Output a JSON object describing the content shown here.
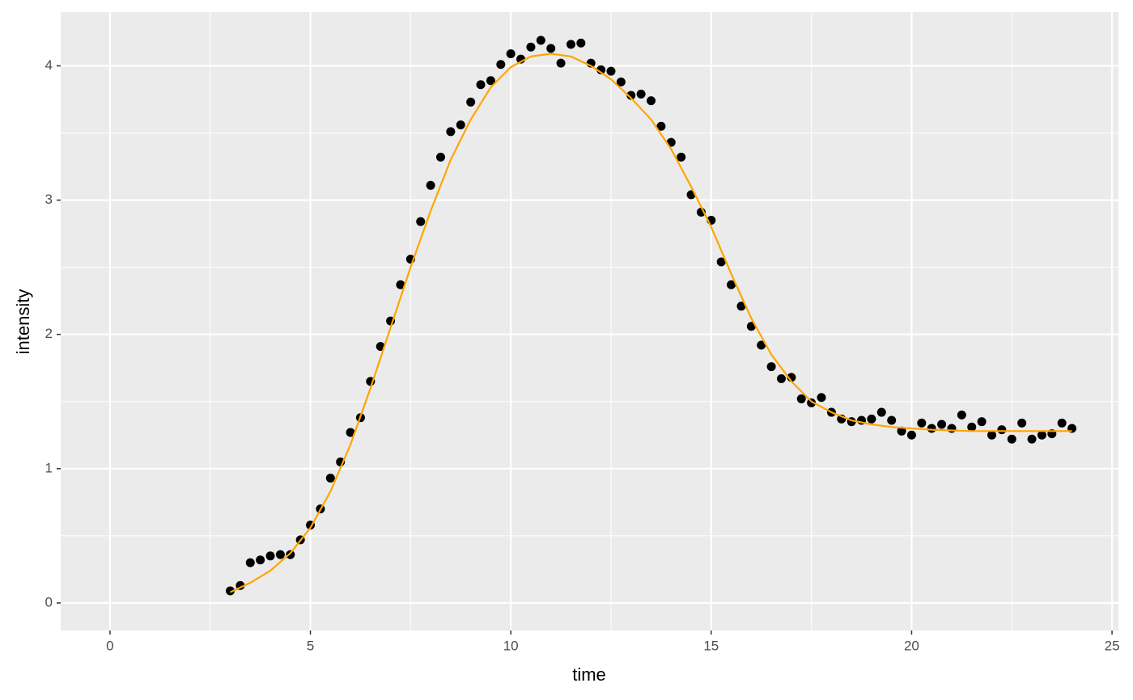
{
  "chart_data": {
    "type": "scatter",
    "x_label": "time",
    "y_label": "intensity",
    "xlim": [
      -1.23,
      25.16
    ],
    "ylim": [
      -0.205,
      4.4
    ],
    "xticks": [
      0,
      5,
      10,
      15,
      20,
      25
    ],
    "yticks": [
      0,
      1,
      2,
      3,
      4
    ],
    "grid": true,
    "points": {
      "color": "#000000",
      "x": [
        3,
        3.25,
        3.5,
        3.75,
        4,
        4.25,
        4.5,
        4.75,
        5,
        5.25,
        5.5,
        5.75,
        6,
        6.25,
        6.5,
        6.75,
        7,
        7.25,
        7.5,
        7.75,
        8,
        8.25,
        8.5,
        8.75,
        9,
        9.25,
        9.5,
        9.75,
        10,
        10.25,
        10.5,
        10.75,
        11,
        11.25,
        11.5,
        11.75,
        12,
        12.25,
        12.5,
        12.75,
        13,
        13.25,
        13.5,
        13.75,
        14,
        14.25,
        14.5,
        14.75,
        15,
        15.25,
        15.5,
        15.75,
        16,
        16.25,
        16.5,
        16.75,
        17,
        17.25,
        17.5,
        17.75,
        18,
        18.25,
        18.5,
        18.75,
        19,
        19.25,
        19.5,
        19.75,
        20,
        20.25,
        20.5,
        20.75,
        21,
        21.25,
        21.5,
        21.75,
        22,
        22.25,
        22.5,
        22.75,
        23,
        23.25,
        23.5,
        23.75,
        24
      ],
      "values": [
        0.09,
        0.13,
        0.3,
        0.32,
        0.35,
        0.36,
        0.36,
        0.47,
        0.58,
        0.7,
        0.93,
        1.05,
        1.27,
        1.38,
        1.65,
        1.91,
        2.1,
        2.37,
        2.56,
        2.84,
        3.11,
        3.32,
        3.51,
        3.56,
        3.73,
        3.86,
        3.89,
        4.01,
        4.09,
        4.05,
        4.14,
        4.19,
        4.13,
        4.02,
        4.16,
        4.17,
        4.02,
        3.97,
        3.96,
        3.88,
        3.78,
        3.79,
        3.74,
        3.55,
        3.43,
        3.32,
        3.04,
        2.91,
        2.85,
        2.54,
        2.37,
        2.21,
        2.06,
        1.92,
        1.76,
        1.67,
        1.68,
        1.52,
        1.49,
        1.53,
        1.42,
        1.37,
        1.35,
        1.36,
        1.37,
        1.42,
        1.36,
        1.28,
        1.25,
        1.34,
        1.3,
        1.33,
        1.3,
        1.4,
        1.31,
        1.35,
        1.25,
        1.29,
        1.22,
        1.34,
        1.22,
        1.25,
        1.26,
        1.34,
        1.3
      ]
    },
    "fit": {
      "color": "#ffa500",
      "x": [
        3,
        3.5,
        4,
        4.5,
        5,
        5.5,
        6,
        6.5,
        7,
        7.5,
        8,
        8.5,
        9,
        9.5,
        10,
        10.5,
        11,
        11.5,
        12,
        12.5,
        13,
        13.5,
        14,
        14.5,
        15,
        15.5,
        16,
        16.5,
        17,
        17.5,
        18,
        18.5,
        19,
        19.5,
        20,
        20.5,
        21,
        21.5,
        22,
        22.5,
        23,
        23.5,
        24
      ],
      "values": [
        0.08,
        0.15,
        0.24,
        0.37,
        0.56,
        0.83,
        1.18,
        1.6,
        2.05,
        2.5,
        2.92,
        3.3,
        3.6,
        3.84,
        3.99,
        4.07,
        4.09,
        4.07,
        4.0,
        3.9,
        3.76,
        3.6,
        3.38,
        3.1,
        2.8,
        2.45,
        2.12,
        1.85,
        1.65,
        1.5,
        1.42,
        1.36,
        1.33,
        1.31,
        1.3,
        1.29,
        1.285,
        1.28,
        1.28,
        1.28,
        1.28,
        1.28,
        1.28
      ]
    }
  }
}
